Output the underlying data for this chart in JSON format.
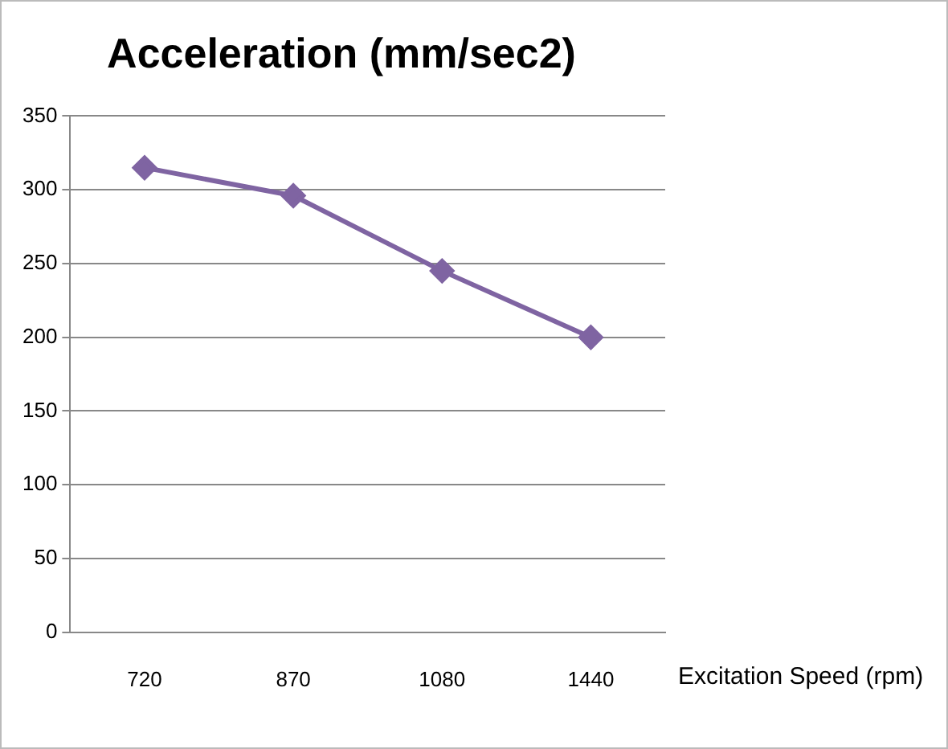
{
  "chart_data": {
    "type": "line",
    "title": "Acceleration (mm/sec2)",
    "xlabel": "Excitation Speed (rpm)",
    "categories": [
      "720",
      "870",
      "1080",
      "1440"
    ],
    "series": [
      {
        "color": "#7f64a2",
        "values": [
          315,
          296,
          245,
          200
        ]
      }
    ],
    "ylim": [
      0,
      350
    ],
    "yticks": [
      0,
      50,
      100,
      150,
      200,
      250,
      300,
      350
    ],
    "grid": "y",
    "legend": false,
    "marker": "diamond",
    "line_style": "solid"
  }
}
